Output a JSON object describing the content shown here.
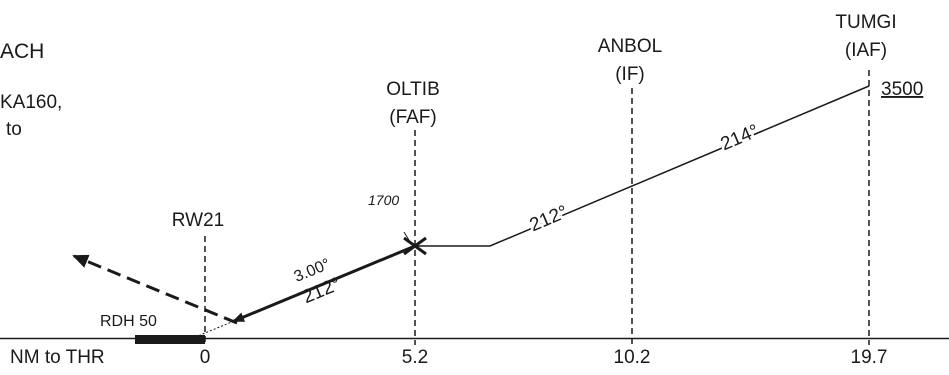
{
  "title_fragment": "ACH",
  "note_line1": "KA160,",
  "note_line2": "to",
  "fixes": {
    "tumgi": {
      "name": "TUMGI",
      "role": "(IAF)",
      "altitude": "3500"
    },
    "anbol": {
      "name": "ANBOL",
      "role": "(IF)"
    },
    "oltib": {
      "name": "OLTIB",
      "role": "(FAF)",
      "altitude": "1700"
    },
    "runway": {
      "name": "RW21"
    }
  },
  "rdh_label": "RDH 50",
  "glidepath_angle": "3.00°",
  "tracks": {
    "final": "212°",
    "intermediate": "212°",
    "initial": "214°"
  },
  "distance_axis": {
    "label": "NM to THR",
    "marks": [
      "0",
      "5.2",
      "10.2",
      "19.7"
    ]
  }
}
